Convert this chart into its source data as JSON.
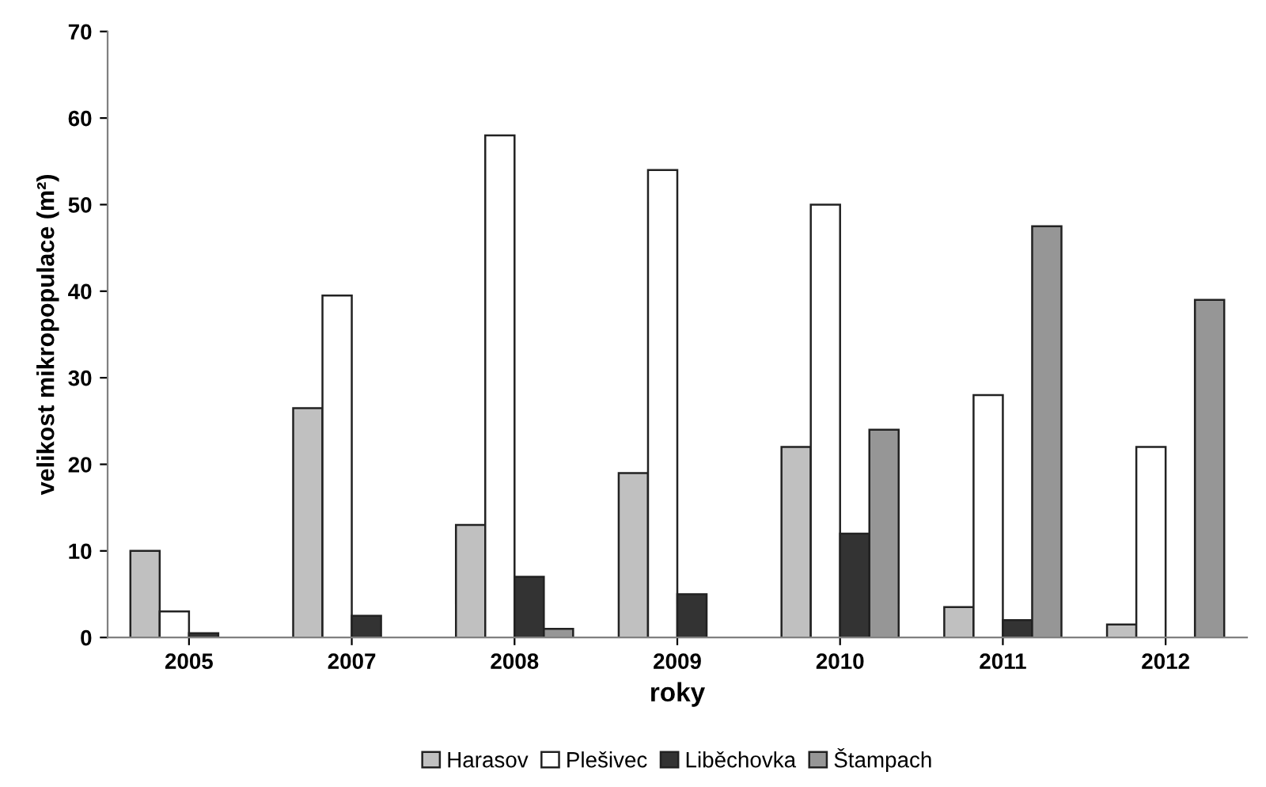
{
  "chart_data": {
    "type": "bar",
    "xlabel": "roky",
    "ylabel": "velikost mikropopulace (m²)",
    "categories": [
      "2005",
      "2007",
      "2008",
      "2009",
      "2010",
      "2011",
      "2012"
    ],
    "series": [
      {
        "name": "Harasov",
        "color": "#c0c0c0",
        "values": [
          10,
          26.5,
          13,
          19,
          22,
          3.5,
          1.5
        ]
      },
      {
        "name": "Plešivec",
        "color": "#ffffff",
        "values": [
          3,
          39.5,
          58,
          54,
          50,
          28,
          22
        ]
      },
      {
        "name": "Liběchovka",
        "color": "#333333",
        "values": [
          0.5,
          2.5,
          7,
          5,
          12,
          2,
          null
        ]
      },
      {
        "name": "Štampach",
        "color": "#969696",
        "values": [
          null,
          null,
          1,
          null,
          24,
          47.5,
          39
        ]
      }
    ],
    "ylim": [
      0,
      70
    ],
    "yticks": [
      0,
      10,
      20,
      30,
      40,
      50,
      60,
      70
    ],
    "grid": false,
    "legend": "bottom"
  }
}
